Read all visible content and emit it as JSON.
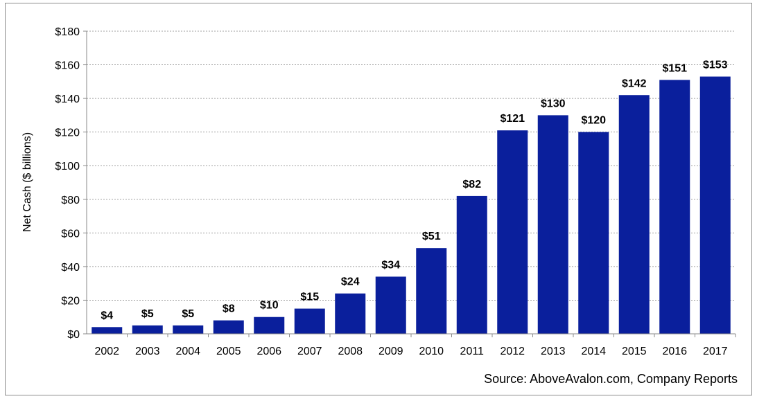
{
  "chart_data": {
    "type": "bar",
    "title": "",
    "xlabel": "",
    "ylabel": "Net Cash ($ billions)",
    "ylim": [
      0,
      180
    ],
    "ytick_step": 20,
    "ytick_prefix": "$",
    "grid": true,
    "categories": [
      "2002",
      "2003",
      "2004",
      "2005",
      "2006",
      "2007",
      "2008",
      "2009",
      "2010",
      "2011",
      "2012",
      "2013",
      "2014",
      "2015",
      "2016",
      "2017"
    ],
    "values": [
      4,
      5,
      5,
      8,
      10,
      15,
      24,
      34,
      51,
      82,
      121,
      130,
      120,
      142,
      151,
      153
    ],
    "data_labels": [
      "$4",
      "$5",
      "$5",
      "$8",
      "$10",
      "$15",
      "$24",
      "$34",
      "$51",
      "$82",
      "$121",
      "$130",
      "$120",
      "$142",
      "$151",
      "$153"
    ],
    "bar_color": "#0a1f9c",
    "source": "Source: AboveAvalon.com, Company Reports"
  }
}
